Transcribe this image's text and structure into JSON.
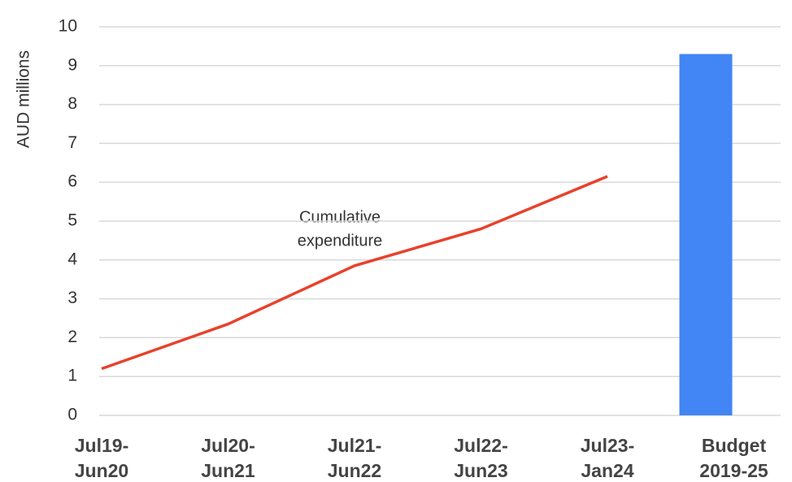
{
  "chart_data": {
    "type": "combo",
    "ylabel": "AUD millions",
    "categories": [
      [
        "Jul19-",
        "Jun20"
      ],
      [
        "Jul20-",
        "Jun21"
      ],
      [
        "Jul21-",
        "Jun22"
      ],
      [
        "Jul22-",
        "Jun23"
      ],
      [
        "Jul23-",
        "Jan24"
      ],
      [
        "Budget",
        "2019-25"
      ]
    ],
    "series": [
      {
        "type": "line",
        "color": "#e8412c",
        "values": [
          1.2,
          2.35,
          3.85,
          4.8,
          6.15,
          null
        ]
      },
      {
        "type": "bar",
        "color": "#4285f4",
        "values": [
          null,
          null,
          null,
          null,
          null,
          9.3
        ]
      }
    ],
    "annotation": [
      "Cumulative",
      "expenditure"
    ],
    "ylim": [
      0,
      10
    ],
    "yticks": [
      0,
      1,
      2,
      3,
      4,
      5,
      6,
      7,
      8,
      9,
      10
    ],
    "grid": true
  }
}
